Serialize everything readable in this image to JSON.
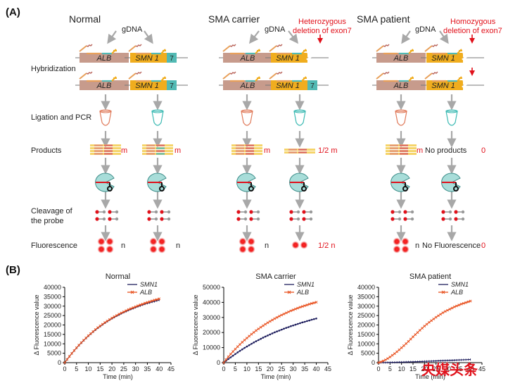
{
  "panel_a": {
    "label": "(A)",
    "gdna_label": "gDNA",
    "columns": [
      {
        "title": "Normal"
      },
      {
        "title": "SMA carrier",
        "note_line1": "Heterozygous",
        "note_line2": "deletion of exon7"
      },
      {
        "title": "SMA patient",
        "note_line1": "Homozygous",
        "note_line2": "deletion of exon7"
      }
    ],
    "gene_alb": "ALB",
    "gene_smn1": "SMN 1",
    "exon": "7",
    "row_labels": {
      "hybridization": "Hybridization",
      "ligation": "Ligation and PCR",
      "products": "Products",
      "cleavage_1": "Cleavage of",
      "cleavage_2": "the probe",
      "fluorescence": "Fluorescence"
    },
    "product_values": [
      "m",
      "m",
      "m",
      "1/2 m",
      "m",
      "0"
    ],
    "no_products": "No products",
    "fluorescence_values": [
      "n",
      "n",
      "n",
      "1/2 n",
      "n",
      "0"
    ],
    "no_fluorescence": "No Fluorescence",
    "colors": {
      "alb": "#c79b8c",
      "smn1": "#f0ad1e",
      "exon": "#52b9b3",
      "red": "#e1111b",
      "arrow": "#a8a8a8"
    }
  },
  "panel_b": {
    "label": "(B)",
    "watermark": "央媒头条"
  },
  "chart_data": [
    {
      "type": "line",
      "title": "Normal",
      "xlabel": "Time (min)",
      "ylabel": "Δ Fluorescence value",
      "xlim": [
        0,
        45
      ],
      "ylim": [
        0,
        40000
      ],
      "xticks": [
        0,
        5,
        10,
        15,
        20,
        25,
        30,
        35,
        40,
        45
      ],
      "yticks": [
        0,
        5000,
        10000,
        15000,
        20000,
        25000,
        30000,
        35000,
        40000
      ],
      "x": [
        0,
        1,
        2,
        3,
        4,
        5,
        6,
        7,
        8,
        9,
        10,
        11,
        12,
        13,
        14,
        15,
        16,
        17,
        18,
        19,
        20,
        21,
        22,
        23,
        24,
        25,
        26,
        27,
        28,
        29,
        30,
        31,
        32,
        33,
        34,
        35,
        36,
        37,
        38,
        39,
        40
      ],
      "series": [
        {
          "name": "SMN1",
          "color": "#1f1f5e",
          "marker": "line",
          "values": [
            0,
            1700,
            3300,
            4900,
            6400,
            7800,
            9200,
            10500,
            11800,
            13000,
            14200,
            15300,
            16400,
            17400,
            18400,
            19300,
            20200,
            21100,
            21900,
            22700,
            23400,
            24100,
            24800,
            25400,
            26100,
            26700,
            27200,
            27800,
            28300,
            28800,
            29300,
            29800,
            30200,
            30700,
            31100,
            31500,
            31800,
            32200,
            32500,
            32900,
            33200
          ]
        },
        {
          "name": "ALB",
          "color": "#e8501e",
          "marker": "x",
          "values": [
            0,
            1700,
            3300,
            4900,
            6400,
            7900,
            9300,
            10600,
            11900,
            13100,
            14300,
            15400,
            16500,
            17600,
            18600,
            19500,
            20400,
            21300,
            22100,
            22900,
            23700,
            24400,
            25100,
            25800,
            26400,
            27000,
            27600,
            28200,
            28700,
            29200,
            29700,
            30200,
            30700,
            31100,
            31600,
            32000,
            32400,
            32800,
            33200,
            33500,
            33900
          ]
        }
      ],
      "legend": "top-right"
    },
    {
      "type": "line",
      "title": "SMA carrier",
      "xlabel": "Time (min)",
      "ylabel": "Δ Fluorescence value",
      "xlim": [
        0,
        45
      ],
      "ylim": [
        0,
        50000
      ],
      "xticks": [
        0,
        5,
        10,
        15,
        20,
        25,
        30,
        35,
        40,
        45
      ],
      "yticks": [
        0,
        10000,
        20000,
        30000,
        40000,
        50000
      ],
      "x": [
        0,
        1,
        2,
        3,
        4,
        5,
        6,
        7,
        8,
        9,
        10,
        11,
        12,
        13,
        14,
        15,
        16,
        17,
        18,
        19,
        20,
        21,
        22,
        23,
        24,
        25,
        26,
        27,
        28,
        29,
        30,
        31,
        32,
        33,
        34,
        35,
        36,
        37,
        38,
        39,
        40
      ],
      "series": [
        {
          "name": "SMN1",
          "color": "#1f1f5e",
          "marker": "dot",
          "values": [
            0,
            1200,
            2400,
            3500,
            4600,
            5700,
            6800,
            7800,
            8800,
            9800,
            10700,
            11600,
            12500,
            13400,
            14200,
            15000,
            15800,
            16600,
            17300,
            18000,
            18700,
            19400,
            20100,
            20700,
            21300,
            21900,
            22500,
            23100,
            23600,
            24200,
            24700,
            25200,
            25700,
            26200,
            26700,
            27100,
            27600,
            28000,
            28500,
            28900,
            29300
          ]
        },
        {
          "name": "ALB",
          "color": "#e8501e",
          "marker": "x",
          "values": [
            0,
            2000,
            3900,
            5700,
            7400,
            9000,
            10600,
            12100,
            13600,
            15000,
            16300,
            17600,
            18900,
            20100,
            21300,
            22400,
            23500,
            24500,
            25500,
            26500,
            27400,
            28300,
            29200,
            30000,
            30800,
            31600,
            32300,
            33000,
            33700,
            34400,
            35000,
            35600,
            36200,
            36800,
            37300,
            37800,
            38300,
            38800,
            39300,
            39700,
            40100
          ]
        }
      ],
      "legend": "top-right"
    },
    {
      "type": "line",
      "title": "SMA patient",
      "xlabel": "Time (min)",
      "ylabel": "Δ Fluorescence value",
      "xlim": [
        0,
        45
      ],
      "ylim": [
        0,
        40000
      ],
      "xticks": [
        0,
        5,
        10,
        15,
        20,
        25,
        30,
        35,
        40,
        45
      ],
      "yticks": [
        0,
        5000,
        10000,
        15000,
        20000,
        25000,
        30000,
        35000,
        40000
      ],
      "x": [
        0,
        1,
        2,
        3,
        4,
        5,
        6,
        7,
        8,
        9,
        10,
        11,
        12,
        13,
        14,
        15,
        16,
        17,
        18,
        19,
        20,
        21,
        22,
        23,
        24,
        25,
        26,
        27,
        28,
        29,
        30,
        31,
        32,
        33,
        34,
        35,
        36,
        37,
        38,
        39,
        40
      ],
      "series": [
        {
          "name": "SMN1",
          "color": "#1f1f5e",
          "marker": "line",
          "values": [
            0,
            20,
            40,
            60,
            80,
            100,
            130,
            160,
            190,
            220,
            250,
            280,
            320,
            360,
            400,
            440,
            480,
            520,
            570,
            620,
            670,
            720,
            770,
            820,
            870,
            920,
            970,
            1020,
            1070,
            1120,
            1170,
            1220,
            1270,
            1320,
            1370,
            1420,
            1470,
            1520,
            1570,
            1620,
            1670
          ]
        },
        {
          "name": "ALB",
          "color": "#e8501e",
          "marker": "x",
          "values": [
            0,
            400,
            900,
            1500,
            2200,
            3000,
            3900,
            4800,
            5800,
            6800,
            7900,
            9000,
            10100,
            11300,
            12500,
            13700,
            14900,
            16000,
            17200,
            18300,
            19400,
            20400,
            21400,
            22300,
            23200,
            24100,
            24900,
            25700,
            26500,
            27200,
            27800,
            28400,
            29000,
            29600,
            30100,
            30600,
            31100,
            31500,
            31900,
            32300,
            32700
          ]
        }
      ],
      "legend": "top-right"
    }
  ]
}
